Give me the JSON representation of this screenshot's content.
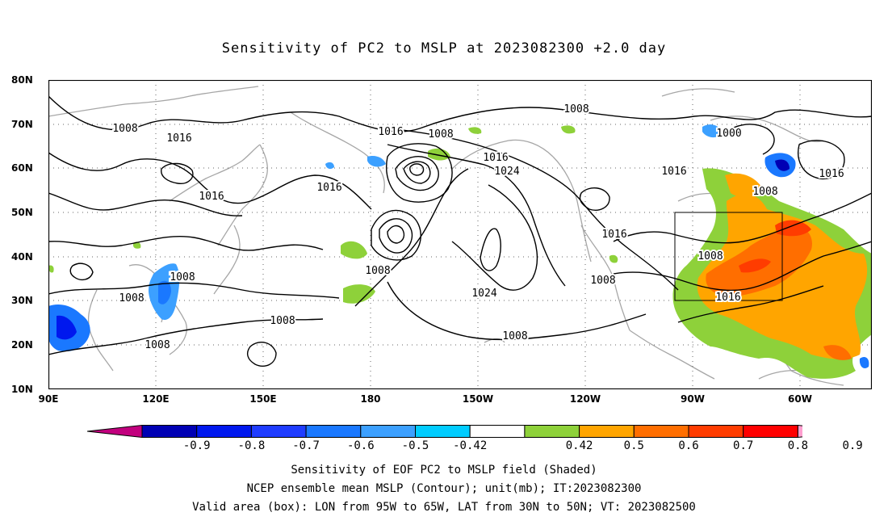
{
  "title": "Sensitivity of PC2 to MSLP at 2023082300 +2.0 day",
  "lat_labels": [
    "80N",
    "70N",
    "60N",
    "50N",
    "40N",
    "30N",
    "20N",
    "10N"
  ],
  "lon_labels": [
    "90E",
    "120E",
    "150E",
    "180",
    "150W",
    "120W",
    "90W",
    "60W"
  ],
  "colorbar": {
    "labels": [
      "-0.9",
      "-0.8",
      "-0.7",
      "-0.6",
      "-0.5",
      "-0.42",
      "0.42",
      "0.5",
      "0.6",
      "0.7",
      "0.8",
      "0.9"
    ],
    "colors": [
      "#c2007e",
      "#0000b4",
      "#0018ee",
      "#1f3cff",
      "#1a78ff",
      "#3ca0ff",
      "#00ccff",
      "#ffffff",
      "#8ed13a",
      "#ffa500",
      "#ff6e00",
      "#ff3c00",
      "#ff0000",
      "#ff9fd0"
    ]
  },
  "contour_labels": [
    "1008",
    "1016",
    "1008",
    "1016",
    "1016",
    "1008",
    "1016",
    "1024",
    "1008",
    "1016",
    "1008",
    "1016",
    "1000",
    "1016",
    "1008",
    "1016",
    "1008",
    "1008",
    "1008",
    "1024",
    "1008",
    "1008",
    "1008",
    "1016",
    "1008"
  ],
  "captions": {
    "line1": "Sensitivity of EOF PC2 to MSLP field (Shaded)",
    "line2": "NCEP ensemble mean MSLP (Contour); unit(mb); IT:2023082300",
    "line3": "Valid area (box): LON from 95W to 65W, LAT from 30N to 50N; VT: 2023082500"
  }
}
